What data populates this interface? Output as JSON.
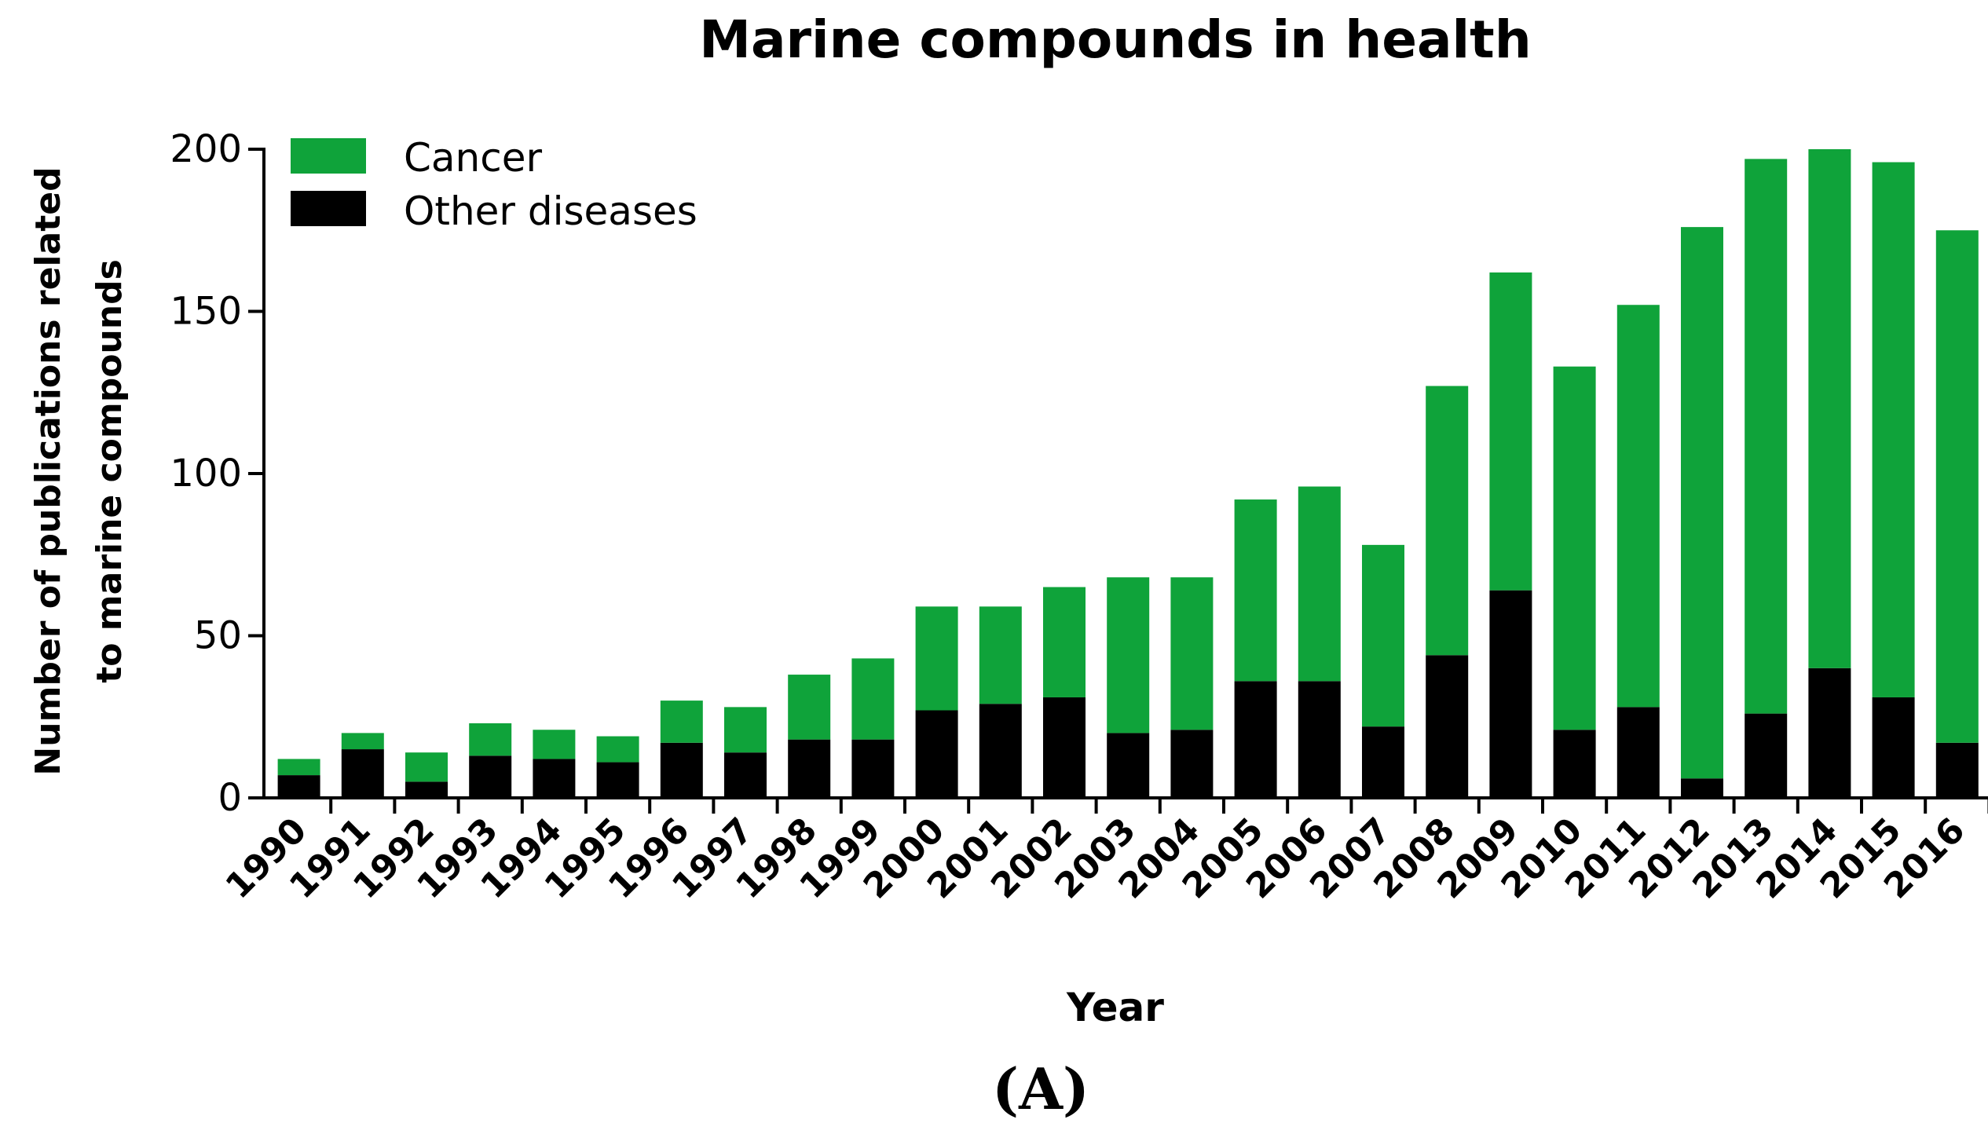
{
  "chart_data": {
    "type": "bar",
    "stacked": true,
    "title": "Marine compounds in health",
    "ylabel_lines": [
      "Number of publications related",
      "to marine compounds"
    ],
    "xlabel": "Year",
    "panel_label": "(A)",
    "ylim": [
      0,
      200
    ],
    "yticks": [
      "0",
      "50",
      "100",
      "150",
      "200"
    ],
    "categories": [
      "1990",
      "1991",
      "1992",
      "1993",
      "1994",
      "1995",
      "1996",
      "1997",
      "1998",
      "1999",
      "2000",
      "2001",
      "2002",
      "2003",
      "2004",
      "2005",
      "2006",
      "2007",
      "2008",
      "2009",
      "2010",
      "2011",
      "2012",
      "2013",
      "2014",
      "2015",
      "2016"
    ],
    "series": [
      {
        "name": "Other diseases",
        "color": "#000000",
        "values": [
          7,
          15,
          5,
          13,
          12,
          11,
          17,
          14,
          18,
          18,
          27,
          29,
          31,
          20,
          21,
          36,
          36,
          22,
          44,
          64,
          21,
          28,
          6,
          26,
          40,
          31,
          17
        ]
      },
      {
        "name": "Cancer",
        "color": "#0fa33a",
        "values": [
          5,
          5,
          9,
          10,
          9,
          8,
          13,
          14,
          20,
          25,
          32,
          30,
          34,
          48,
          47,
          56,
          60,
          56,
          83,
          98,
          112,
          124,
          170,
          171,
          160,
          165,
          158
        ]
      }
    ],
    "legend": [
      {
        "label": "Cancer",
        "color": "#0fa33a"
      },
      {
        "label": "Other diseases",
        "color": "#000000"
      }
    ],
    "legend_position": "top-left"
  }
}
